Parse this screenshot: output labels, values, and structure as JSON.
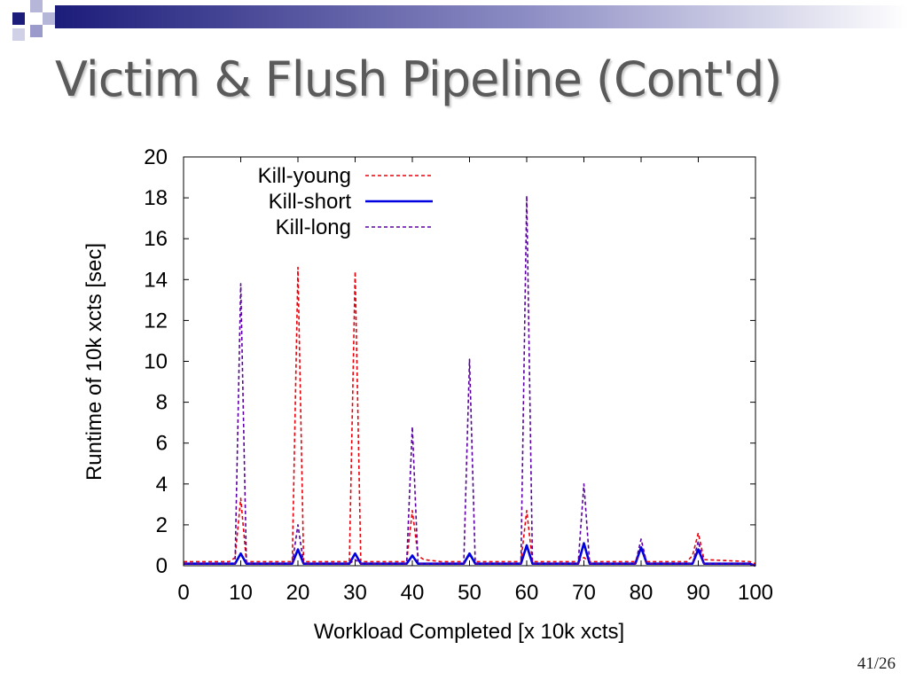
{
  "slide": {
    "title": "Victim & Flush Pipeline (Cont'd)",
    "page_number": "41/26"
  },
  "chart_data": {
    "type": "line",
    "title": "",
    "xlabel": "Workload Completed [x 10k xcts]",
    "ylabel": "Runtime of 10k xcts [sec]",
    "xlim": [
      0,
      100
    ],
    "ylim": [
      0,
      20
    ],
    "xticks": [
      "0",
      "10",
      "20",
      "30",
      "40",
      "50",
      "60",
      "70",
      "80",
      "90",
      "100"
    ],
    "yticks": [
      "0",
      "2",
      "4",
      "6",
      "8",
      "10",
      "12",
      "14",
      "16",
      "18",
      "20"
    ],
    "legend_position": "top-left",
    "series": [
      {
        "name": "Kill-young",
        "color": "#e8000b",
        "style": "dashed",
        "x": [
          0,
          8,
          9,
          10,
          11,
          19,
          20,
          21,
          29,
          30,
          31,
          39,
          40,
          41,
          42,
          45,
          49,
          50,
          51,
          59,
          60,
          61,
          69,
          70,
          71,
          79,
          80,
          81,
          88,
          89,
          90,
          91,
          99,
          100
        ],
        "y": [
          0.2,
          0.2,
          0.4,
          3.3,
          0.2,
          0.2,
          14.6,
          0.2,
          0.2,
          14.4,
          0.2,
          0.2,
          2.7,
          0.5,
          0.3,
          0.2,
          0.2,
          0.5,
          0.2,
          0.2,
          2.7,
          0.2,
          0.2,
          0.4,
          0.2,
          0.2,
          0.8,
          0.2,
          0.2,
          0.5,
          1.6,
          0.3,
          0.2,
          0.1
        ]
      },
      {
        "name": "Kill-short",
        "color": "#0000e0",
        "style": "solid",
        "x": [
          0,
          9,
          10,
          11,
          19,
          20,
          21,
          29,
          30,
          31,
          39,
          40,
          41,
          49,
          50,
          51,
          59,
          60,
          61,
          69,
          70,
          71,
          79,
          80,
          81,
          89,
          90,
          91,
          99,
          100
        ],
        "y": [
          0.1,
          0.1,
          0.6,
          0.1,
          0.1,
          0.8,
          0.1,
          0.1,
          0.6,
          0.1,
          0.1,
          0.5,
          0.1,
          0.1,
          0.6,
          0.1,
          0.1,
          1.0,
          0.1,
          0.1,
          1.1,
          0.1,
          0.1,
          0.9,
          0.1,
          0.1,
          0.8,
          0.1,
          0.1,
          0.0
        ]
      },
      {
        "name": "Kill-long",
        "color": "#5a00a0",
        "style": "dashed",
        "x": [
          0,
          9,
          10,
          11,
          19,
          20,
          21,
          29,
          30,
          31,
          39,
          40,
          41,
          49,
          50,
          51,
          59,
          60,
          61,
          69,
          70,
          71,
          79,
          80,
          81,
          89,
          90,
          91,
          99,
          100
        ],
        "y": [
          0.1,
          0.1,
          13.8,
          0.1,
          0.1,
          2.0,
          0.1,
          0.1,
          0.3,
          0.1,
          0.1,
          6.8,
          0.1,
          0.1,
          10.1,
          0.1,
          0.1,
          18.1,
          0.1,
          0.1,
          4.0,
          0.1,
          0.1,
          1.3,
          0.1,
          0.1,
          1.2,
          0.1,
          0.1,
          0.0
        ]
      }
    ]
  }
}
